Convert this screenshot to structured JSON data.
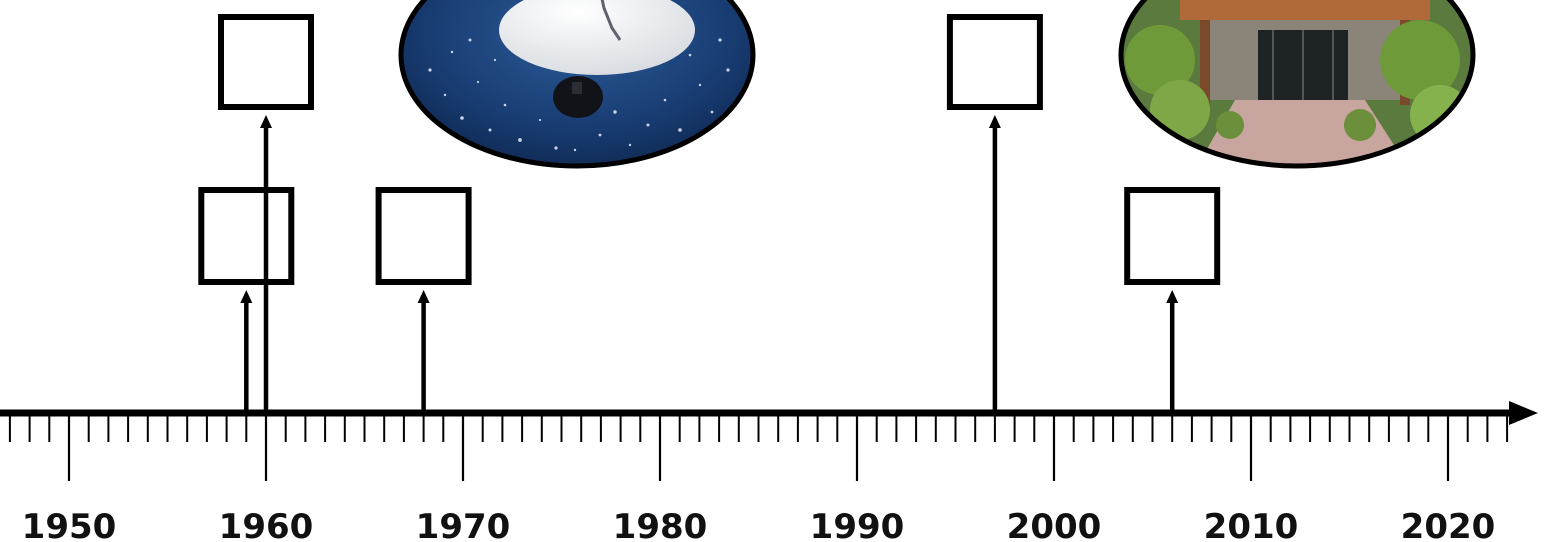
{
  "timeline": {
    "year_start": 1945,
    "year_end": 2023,
    "axis_color": "#000000",
    "year_labels": [
      "1950",
      "1960",
      "1970",
      "1980",
      "1990",
      "2000",
      "2010",
      "2020"
    ],
    "events": [
      {
        "name": "event-1959",
        "year": 1959,
        "level": "low"
      },
      {
        "name": "event-1960",
        "year": 1960,
        "level": "high"
      },
      {
        "name": "event-1968",
        "year": 1968,
        "level": "low"
      },
      {
        "name": "event-1997",
        "year": 1997,
        "level": "high"
      },
      {
        "name": "event-2006",
        "year": 2006,
        "level": "low"
      }
    ],
    "photos": [
      {
        "name": "buoy-photo",
        "depicts": "white buoy floating on dark blue sparkling water"
      },
      {
        "name": "building-photo",
        "depicts": "building entrance with trees and walkway"
      }
    ]
  }
}
